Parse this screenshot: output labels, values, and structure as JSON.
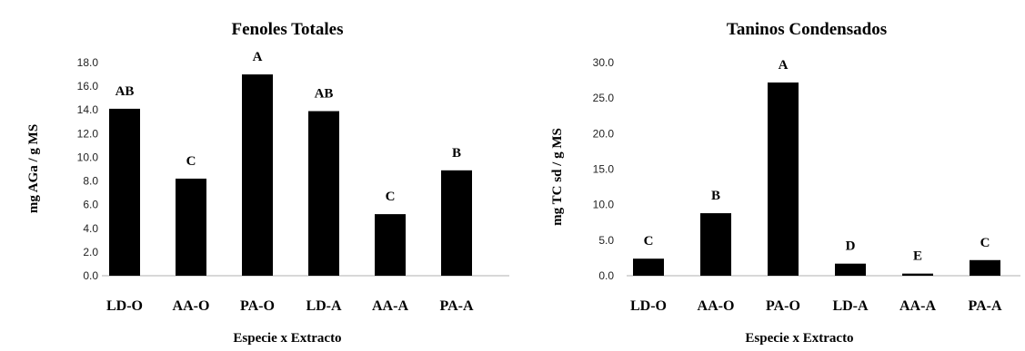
{
  "chart_data": [
    {
      "type": "bar",
      "title": "Fenoles Totales",
      "xlabel": "Especie x Extracto",
      "ylabel": "mg AGa / g MS",
      "categories": [
        "LD-O",
        "AA-O",
        "PA-O",
        "LD-A",
        "AA-A",
        "PA-A"
      ],
      "values": [
        14.1,
        8.2,
        17.0,
        13.9,
        5.2,
        8.9
      ],
      "bar_labels": [
        "AB",
        "C",
        "A",
        "AB",
        "C",
        "B"
      ],
      "ylim": [
        0,
        18
      ],
      "yticks": [
        "0.0",
        "2.0",
        "4.0",
        "6.0",
        "8.0",
        "10.0",
        "12.0",
        "14.0",
        "16.0",
        "18.0"
      ],
      "grid": false,
      "bar_color": "#000000"
    },
    {
      "type": "bar",
      "title": "Taninos Condensados",
      "xlabel": "Especie x Extracto",
      "ylabel": "mg TC sd / g MS",
      "categories": [
        "LD-O",
        "AA-O",
        "PA-O",
        "LD-A",
        "AA-A",
        "PA-A"
      ],
      "values": [
        2.4,
        8.8,
        27.2,
        1.7,
        0.3,
        2.2
      ],
      "bar_labels": [
        "C",
        "B",
        "A",
        "D",
        "E",
        "C"
      ],
      "ylim": [
        0,
        30
      ],
      "yticks": [
        "0.0",
        "5.0",
        "10.0",
        "15.0",
        "20.0",
        "25.0",
        "30.0"
      ],
      "grid": false,
      "bar_color": "#000000"
    }
  ]
}
